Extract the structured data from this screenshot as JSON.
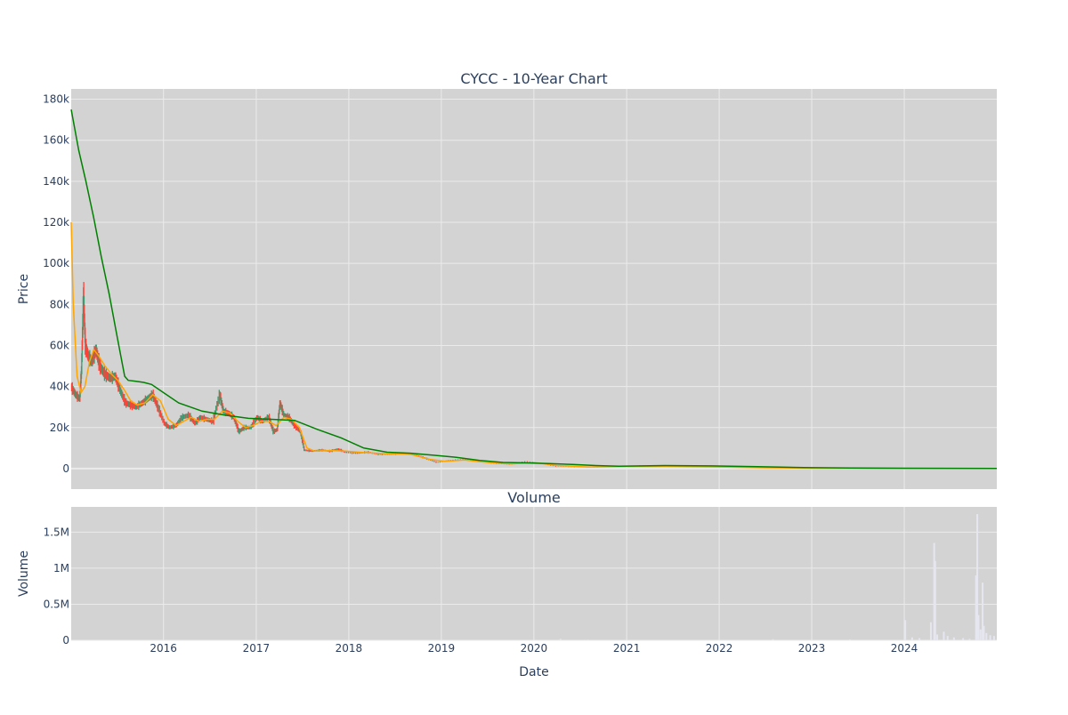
{
  "chart_data": [
    {
      "type": "candlestick",
      "title": "CYCC - 10-Year Chart",
      "ylabel": "Price",
      "xlabel": "",
      "ylim": [
        -10000,
        185000
      ],
      "xlim": [
        "2015-01-02",
        "2024-12-31"
      ],
      "y_ticks": [
        {
          "value": 0,
          "label": "0"
        },
        {
          "value": 20000,
          "label": "20k"
        },
        {
          "value": 40000,
          "label": "40k"
        },
        {
          "value": 60000,
          "label": "60k"
        },
        {
          "value": 80000,
          "label": "80k"
        },
        {
          "value": 100000,
          "label": "100k"
        },
        {
          "value": 120000,
          "label": "120k"
        },
        {
          "value": 140000,
          "label": "140k"
        },
        {
          "value": 160000,
          "label": "160k"
        },
        {
          "value": 180000,
          "label": "180k"
        }
      ],
      "grid": true,
      "increasing_color": "#3d9970",
      "decreasing_color": "#ff4136",
      "close": [
        [
          "2015-01-02",
          40000
        ],
        [
          "2015-01-20",
          36000
        ],
        [
          "2015-02-05",
          34000
        ],
        [
          "2015-02-12",
          48000
        ],
        [
          "2015-02-20",
          85000
        ],
        [
          "2015-02-27",
          60000
        ],
        [
          "2015-03-10",
          55000
        ],
        [
          "2015-03-25",
          52000
        ],
        [
          "2015-04-10",
          58000
        ],
        [
          "2015-04-25",
          50000
        ],
        [
          "2015-05-15",
          46000
        ],
        [
          "2015-06-05",
          44000
        ],
        [
          "2015-06-25",
          45000
        ],
        [
          "2015-07-15",
          38000
        ],
        [
          "2015-08-05",
          32000
        ],
        [
          "2015-08-25",
          31000
        ],
        [
          "2015-09-15",
          30000
        ],
        [
          "2015-10-10",
          32000
        ],
        [
          "2015-10-30",
          34000
        ],
        [
          "2015-11-20",
          36000
        ],
        [
          "2015-12-10",
          30000
        ],
        [
          "2016-01-05",
          22000
        ],
        [
          "2016-01-25",
          20000
        ],
        [
          "2016-02-20",
          21000
        ],
        [
          "2016-03-15",
          25000
        ],
        [
          "2016-04-10",
          26000
        ],
        [
          "2016-05-05",
          22000
        ],
        [
          "2016-05-25",
          25000
        ],
        [
          "2016-06-20",
          24000
        ],
        [
          "2016-07-15",
          23000
        ],
        [
          "2016-08-10",
          36000
        ],
        [
          "2016-08-25",
          28000
        ],
        [
          "2016-09-15",
          27000
        ],
        [
          "2016-10-05",
          25000
        ],
        [
          "2016-10-25",
          18000
        ],
        [
          "2016-11-15",
          20000
        ],
        [
          "2016-12-10",
          20000
        ],
        [
          "2017-01-05",
          25000
        ],
        [
          "2017-01-25",
          23000
        ],
        [
          "2017-02-20",
          25000
        ],
        [
          "2017-03-10",
          18000
        ],
        [
          "2017-03-25",
          19000
        ],
        [
          "2017-04-05",
          32000
        ],
        [
          "2017-04-20",
          26000
        ],
        [
          "2017-05-10",
          25000
        ],
        [
          "2017-06-01",
          21000
        ],
        [
          "2017-06-25",
          18000
        ],
        [
          "2017-07-10",
          9000
        ],
        [
          "2017-08-10",
          8500
        ],
        [
          "2017-09-15",
          9000
        ],
        [
          "2017-10-20",
          8500
        ],
        [
          "2017-11-20",
          9500
        ],
        [
          "2017-12-20",
          8000
        ],
        [
          "2018-02-01",
          7500
        ],
        [
          "2018-03-15",
          8000
        ],
        [
          "2018-05-01",
          7000
        ],
        [
          "2018-06-15",
          7000
        ],
        [
          "2018-08-01",
          7500
        ],
        [
          "2018-09-15",
          7000
        ],
        [
          "2018-11-01",
          5000
        ],
        [
          "2018-12-15",
          3000
        ],
        [
          "2019-02-01",
          4000
        ],
        [
          "2019-04-01",
          4500
        ],
        [
          "2019-06-01",
          3500
        ],
        [
          "2019-08-01",
          2500
        ],
        [
          "2019-10-01",
          2000
        ],
        [
          "2019-12-01",
          3500
        ],
        [
          "2020-02-01",
          2500
        ],
        [
          "2020-04-01",
          1000
        ],
        [
          "2020-06-01",
          800
        ],
        [
          "2020-09-01",
          600
        ],
        [
          "2020-12-01",
          1000
        ],
        [
          "2021-03-01",
          1500
        ],
        [
          "2021-06-01",
          1200
        ],
        [
          "2021-09-01",
          1000
        ],
        [
          "2021-12-01",
          800
        ],
        [
          "2022-03-01",
          600
        ],
        [
          "2022-06-01",
          400
        ],
        [
          "2022-09-01",
          300
        ],
        [
          "2022-12-01",
          200
        ],
        [
          "2023-06-01",
          150
        ],
        [
          "2024-01-01",
          100
        ],
        [
          "2024-06-01",
          60
        ],
        [
          "2024-12-31",
          30
        ]
      ],
      "ma_lines": [
        {
          "color": "#ffa500",
          "points": [
            [
              "2015-01-02",
              120000
            ],
            [
              "2015-01-10",
              80000
            ],
            [
              "2015-01-25",
              45000
            ],
            [
              "2015-02-10",
              37000
            ],
            [
              "2015-02-25",
              40000
            ],
            [
              "2015-03-15",
              52000
            ],
            [
              "2015-04-01",
              58000
            ],
            [
              "2015-04-20",
              55000
            ],
            [
              "2015-05-15",
              50000
            ],
            [
              "2015-06-10",
              46000
            ],
            [
              "2015-07-05",
              43000
            ],
            [
              "2015-08-01",
              38000
            ],
            [
              "2015-08-25",
              33000
            ],
            [
              "2015-09-20",
              31000
            ],
            [
              "2015-10-20",
              32000
            ],
            [
              "2015-11-20",
              36000
            ],
            [
              "2015-12-20",
              33000
            ],
            [
              "2016-01-20",
              24000
            ],
            [
              "2016-02-20",
              21000
            ],
            [
              "2016-03-20",
              23000
            ],
            [
              "2016-04-20",
              25000
            ],
            [
              "2016-05-20",
              23000
            ],
            [
              "2016-06-20",
              24000
            ],
            [
              "2016-07-20",
              24000
            ],
            [
              "2016-08-20",
              28000
            ],
            [
              "2016-09-20",
              27000
            ],
            [
              "2016-10-20",
              23000
            ],
            [
              "2016-11-20",
              20000
            ],
            [
              "2016-12-20",
              21000
            ],
            [
              "2017-01-20",
              23000
            ],
            [
              "2017-02-20",
              23000
            ],
            [
              "2017-03-20",
              21000
            ],
            [
              "2017-04-20",
              25000
            ],
            [
              "2017-05-20",
              24000
            ],
            [
              "2017-06-20",
              20000
            ],
            [
              "2017-07-20",
              10000
            ],
            [
              "2017-08-20",
              8500
            ],
            [
              "2017-10-20",
              8800
            ],
            [
              "2017-12-20",
              8500
            ],
            [
              "2018-03-01",
              7800
            ],
            [
              "2018-06-01",
              7200
            ],
            [
              "2018-09-01",
              7000
            ],
            [
              "2018-11-15",
              4500
            ],
            [
              "2019-01-15",
              3500
            ],
            [
              "2019-04-01",
              4200
            ],
            [
              "2019-07-01",
              3000
            ],
            [
              "2019-10-01",
              2200
            ],
            [
              "2020-01-01",
              3000
            ],
            [
              "2020-04-01",
              1500
            ],
            [
              "2020-08-01",
              800
            ],
            [
              "2021-01-01",
              1100
            ],
            [
              "2021-06-01",
              1200
            ],
            [
              "2022-01-01",
              800
            ],
            [
              "2022-07-01",
              400
            ],
            [
              "2023-01-01",
              200
            ],
            [
              "2024-01-01",
              100
            ],
            [
              "2024-12-31",
              40
            ]
          ]
        },
        {
          "color": "#008000",
          "points": [
            [
              "2015-01-02",
              175000
            ],
            [
              "2015-02-01",
              155000
            ],
            [
              "2015-03-01",
              140000
            ],
            [
              "2015-04-01",
              122000
            ],
            [
              "2015-05-01",
              103000
            ],
            [
              "2015-06-01",
              85000
            ],
            [
              "2015-07-01",
              65000
            ],
            [
              "2015-08-01",
              45000
            ],
            [
              "2015-08-15",
              43000
            ],
            [
              "2015-09-15",
              42500
            ],
            [
              "2015-10-15",
              42000
            ],
            [
              "2015-11-15",
              41000
            ],
            [
              "2016-01-01",
              37000
            ],
            [
              "2016-03-01",
              32000
            ],
            [
              "2016-06-01",
              28000
            ],
            [
              "2016-09-01",
              26000
            ],
            [
              "2016-12-01",
              24500
            ],
            [
              "2017-03-01",
              24000
            ],
            [
              "2017-06-01",
              23500
            ],
            [
              "2017-09-01",
              19000
            ],
            [
              "2017-12-01",
              15000
            ],
            [
              "2018-03-01",
              10000
            ],
            [
              "2018-06-01",
              8000
            ],
            [
              "2018-09-01",
              7500
            ],
            [
              "2018-12-01",
              6500
            ],
            [
              "2019-03-01",
              5500
            ],
            [
              "2019-06-01",
              4000
            ],
            [
              "2019-09-01",
              3000
            ],
            [
              "2019-12-01",
              2800
            ],
            [
              "2020-03-01",
              2500
            ],
            [
              "2020-06-01",
              2000
            ],
            [
              "2020-09-01",
              1500
            ],
            [
              "2020-12-01",
              1200
            ],
            [
              "2021-06-01",
              1500
            ],
            [
              "2021-12-01",
              1300
            ],
            [
              "2022-06-01",
              900
            ],
            [
              "2022-12-01",
              500
            ],
            [
              "2023-06-01",
              300
            ],
            [
              "2024-01-01",
              200
            ],
            [
              "2024-12-31",
              100
            ]
          ]
        }
      ]
    },
    {
      "type": "bar",
      "title": "Volume",
      "ylabel": "Volume",
      "xlabel": "Date",
      "ylim": [
        0,
        1850000
      ],
      "xlim": [
        "2015-01-02",
        "2024-12-31"
      ],
      "y_ticks": [
        {
          "value": 0,
          "label": "0"
        },
        {
          "value": 500000,
          "label": "0.5M"
        },
        {
          "value": 1000000,
          "label": "1M"
        },
        {
          "value": 1500000,
          "label": "1.5M"
        }
      ],
      "x_ticks": [
        {
          "value": "2016-01-01",
          "label": "2016"
        },
        {
          "value": "2017-01-01",
          "label": "2017"
        },
        {
          "value": "2018-01-01",
          "label": "2018"
        },
        {
          "value": "2019-01-01",
          "label": "2019"
        },
        {
          "value": "2020-01-01",
          "label": "2020"
        },
        {
          "value": "2021-01-01",
          "label": "2021"
        },
        {
          "value": "2022-01-01",
          "label": "2022"
        },
        {
          "value": "2023-01-01",
          "label": "2023"
        },
        {
          "value": "2024-01-01",
          "label": "2024"
        }
      ],
      "grid": true,
      "bar_color": "#e6e6f0",
      "values": [
        [
          "2020-04-15",
          20000
        ],
        [
          "2020-08-01",
          10000
        ],
        [
          "2022-08-01",
          15000
        ],
        [
          "2023-06-01",
          12000
        ],
        [
          "2024-01-05",
          280000
        ],
        [
          "2024-02-01",
          40000
        ],
        [
          "2024-03-01",
          30000
        ],
        [
          "2024-04-15",
          250000
        ],
        [
          "2024-04-28",
          1350000
        ],
        [
          "2024-05-02",
          1100000
        ],
        [
          "2024-05-10",
          80000
        ],
        [
          "2024-06-05",
          120000
        ],
        [
          "2024-06-20",
          60000
        ],
        [
          "2024-07-15",
          40000
        ],
        [
          "2024-08-20",
          30000
        ],
        [
          "2024-09-15",
          20000
        ],
        [
          "2024-10-10",
          900000
        ],
        [
          "2024-10-15",
          1750000
        ],
        [
          "2024-10-20",
          350000
        ],
        [
          "2024-10-28",
          150000
        ],
        [
          "2024-11-05",
          800000
        ],
        [
          "2024-11-10",
          200000
        ],
        [
          "2024-11-20",
          100000
        ],
        [
          "2024-12-05",
          70000
        ],
        [
          "2024-12-20",
          60000
        ]
      ]
    }
  ]
}
